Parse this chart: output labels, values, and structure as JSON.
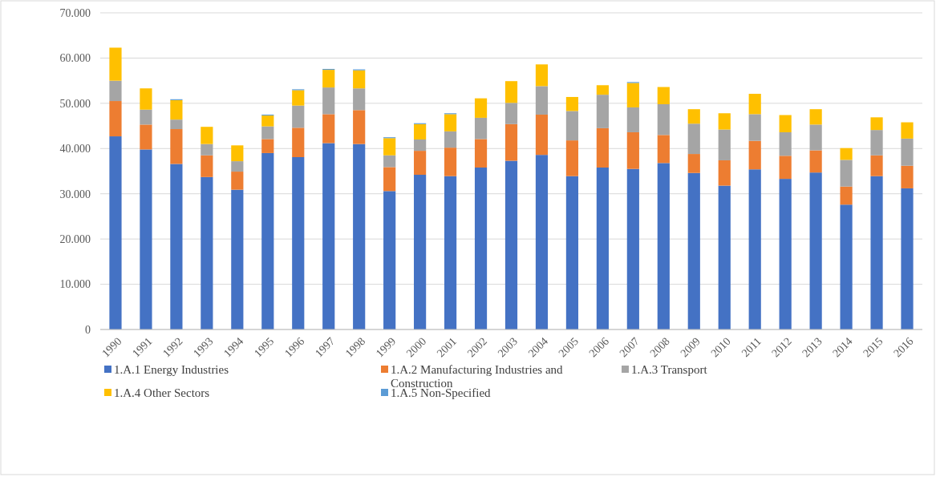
{
  "chart_data": {
    "type": "bar",
    "stacked": true,
    "categories": [
      "1990",
      "1991",
      "1992",
      "1993",
      "1994",
      "1995",
      "1996",
      "1997",
      "1998",
      "1999",
      "2000",
      "2001",
      "2002",
      "2003",
      "2004",
      "2005",
      "2006",
      "2007",
      "2008",
      "2009",
      "2010",
      "2011",
      "2012",
      "2013",
      "2014",
      "2015",
      "2016"
    ],
    "series": [
      {
        "name": "1.A.1 Energy Industries",
        "color": "#4472c4",
        "values": [
          42700,
          39800,
          36600,
          33700,
          30900,
          39000,
          38100,
          41200,
          41000,
          30600,
          34200,
          33900,
          35800,
          37300,
          38600,
          33900,
          35800,
          35500,
          36800,
          34600,
          31800,
          35400,
          33300,
          34700,
          27600,
          33900,
          31200
        ]
      },
      {
        "name": "1.A.2 Manufacturing Industries and Construction",
        "color": "#ed7d31",
        "values": [
          7800,
          5500,
          7700,
          4800,
          4000,
          3100,
          6500,
          6400,
          7500,
          5300,
          5300,
          6300,
          6300,
          8100,
          8900,
          7900,
          8700,
          8100,
          6200,
          4200,
          5600,
          6300,
          5100,
          4900,
          4000,
          4600,
          5000
        ]
      },
      {
        "name": "1.A.3 Transport",
        "color": "#a5a5a5",
        "values": [
          4500,
          3300,
          2100,
          2500,
          2300,
          2800,
          4900,
          5900,
          4800,
          2600,
          2500,
          3600,
          4700,
          4700,
          6300,
          6500,
          7400,
          5500,
          6800,
          6700,
          6800,
          5900,
          5200,
          5700,
          5900,
          5600,
          6000
        ]
      },
      {
        "name": "1.A.4 Other Sectors",
        "color": "#ffc000",
        "values": [
          7300,
          4700,
          4300,
          3800,
          3500,
          2400,
          3400,
          3900,
          4000,
          3800,
          3400,
          3800,
          4300,
          4800,
          4800,
          3100,
          2100,
          5400,
          3800,
          3200,
          3600,
          4500,
          3800,
          3400,
          2600,
          2800,
          3600
        ]
      },
      {
        "name": "1.A.5 Non-Specified",
        "color": "#5b9bd5",
        "values": [
          0,
          0,
          200,
          0,
          0,
          200,
          200,
          200,
          200,
          200,
          200,
          200,
          0,
          0,
          0,
          0,
          0,
          200,
          0,
          0,
          0,
          0,
          0,
          0,
          0,
          0,
          0
        ]
      }
    ],
    "ylim": [
      0,
      70000
    ],
    "yticks": [
      {
        "value": 0,
        "label": "0"
      },
      {
        "value": 10000,
        "label": "10.000"
      },
      {
        "value": 20000,
        "label": "20.000"
      },
      {
        "value": 30000,
        "label": "30.000"
      },
      {
        "value": 40000,
        "label": "40.000"
      },
      {
        "value": 50000,
        "label": "50.000"
      },
      {
        "value": 60000,
        "label": "60.000"
      },
      {
        "value": 70000,
        "label": "70.000"
      }
    ],
    "grid": "y",
    "legend": "bottom"
  }
}
